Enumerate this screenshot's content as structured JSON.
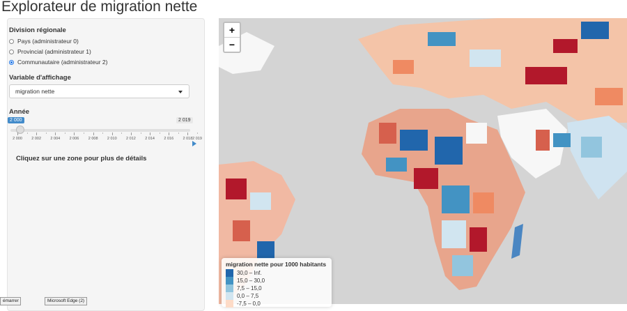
{
  "app": {
    "title": "Explorateur de migration nette"
  },
  "sidebar": {
    "region_label": "Division régionale",
    "region_options": [
      {
        "label": "Pays (administrateur 0)",
        "selected": false
      },
      {
        "label": "Provincial (administrateur 1)",
        "selected": false
      },
      {
        "label": "Communautaire (administrateur 2)",
        "selected": true
      }
    ],
    "variable_label": "Variable d'affichage",
    "variable_value": "migration nette",
    "year_label": "Année",
    "year_min_badge": "2 000",
    "year_max_badge": "2 019",
    "year_ticks": [
      "2 000",
      "2 002",
      "2 004",
      "2 006",
      "2 008",
      "2 010",
      "2 012",
      "2 014",
      "2 016",
      "2 018",
      "2 019"
    ],
    "click_info": "Cliquez sur une zone pour plus de détails"
  },
  "map": {
    "zoom_in": "+",
    "zoom_out": "−",
    "legend": {
      "title": "migration nette pour 1000 habitants",
      "items": [
        {
          "label": "30,0 – Inf.",
          "color": "#2166ac"
        },
        {
          "label": "15,0 – 30,0",
          "color": "#4393c3"
        },
        {
          "label": "7,5 – 15,0",
          "color": "#92c5de"
        },
        {
          "label": "0,0 – 7,5",
          "color": "#d1e5f0"
        },
        {
          "label": "-7,5 – 0,0",
          "color": "#fddbc7"
        }
      ]
    }
  },
  "taskbar": {
    "start": "émarrer",
    "edge": "Microsoft Edge (2)"
  }
}
